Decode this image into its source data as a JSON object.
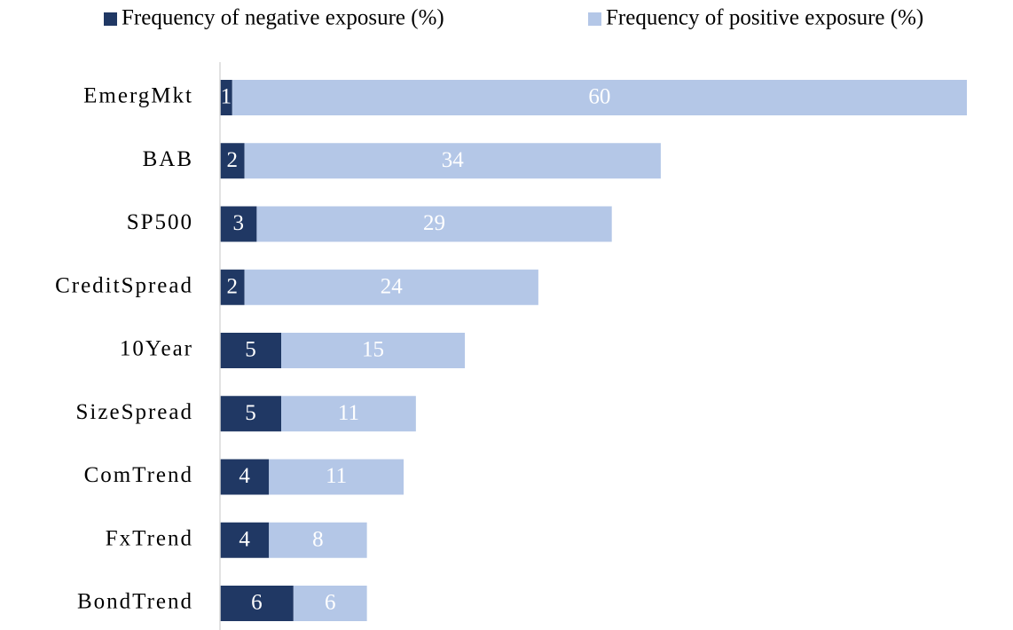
{
  "chart_data": {
    "type": "bar",
    "orientation": "horizontal",
    "stacked": true,
    "categories": [
      "EmergMkt",
      "BAB",
      "SP500",
      "CreditSpread",
      "10Year",
      "SizeSpread",
      "ComTrend",
      "FxTrend",
      "BondTrend"
    ],
    "series": [
      {
        "name": "Frequency of negative exposure (%)",
        "color": "#203864",
        "values": [
          1,
          2,
          3,
          2,
          5,
          5,
          4,
          4,
          6
        ]
      },
      {
        "name": "Frequency of positive exposure (%)",
        "color": "#b4c7e7",
        "values": [
          60,
          34,
          29,
          24,
          15,
          11,
          11,
          8,
          6
        ]
      }
    ],
    "legend": "top"
  }
}
